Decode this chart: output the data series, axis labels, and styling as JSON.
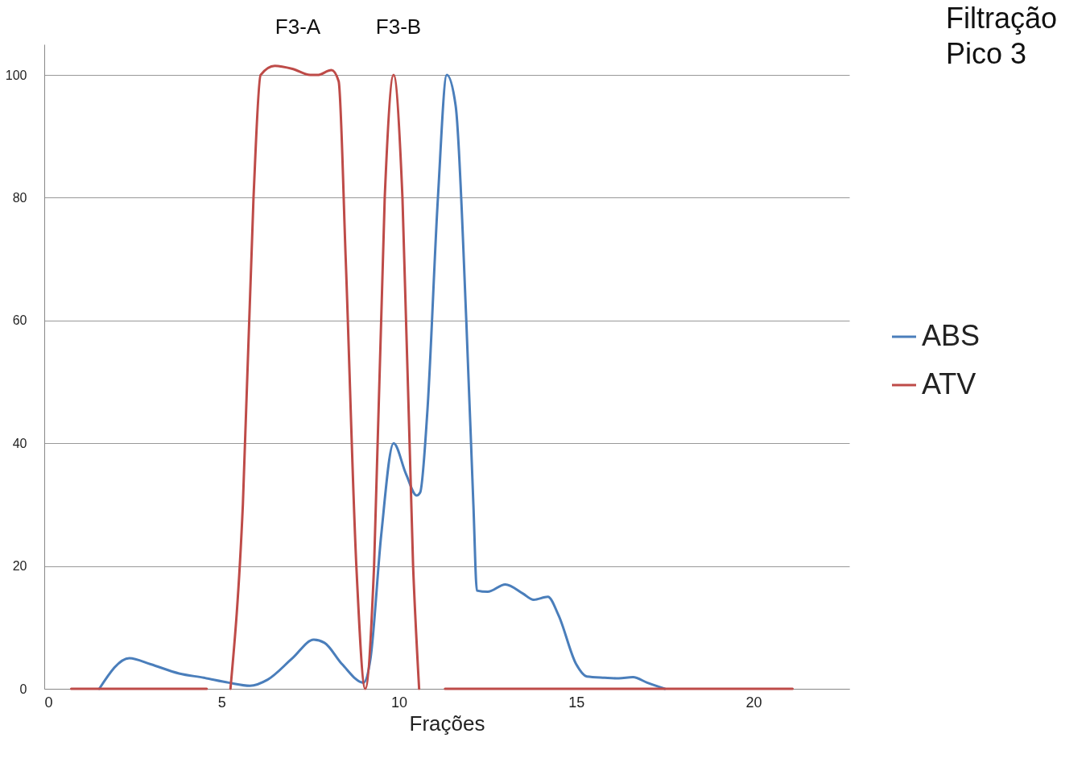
{
  "chart_data": {
    "type": "line",
    "title": "Filtração\nPico 3",
    "xlabel": "Frações",
    "xlim": [
      0,
      22.7
    ],
    "xticks": [
      0,
      5,
      10,
      15,
      20
    ],
    "ylim": [
      0,
      105
    ],
    "yticks": [
      0,
      20,
      40,
      60,
      80,
      100
    ],
    "grid": "y",
    "legend": "right",
    "marker": "none",
    "line_style": "solid",
    "annotations": [
      "F3-A",
      "F3-B"
    ],
    "series": [
      {
        "name": "ABS",
        "color": "#4a7ebb",
        "x": [
          1.55,
          2.4,
          3.0,
          3.8,
          4.5,
          5.2,
          5.8,
          6.3,
          7.0,
          7.6,
          7.9,
          8.4,
          9.0,
          9.2,
          9.5,
          9.85,
          10.2,
          10.5,
          10.6,
          10.8,
          11.1,
          11.35,
          11.6,
          11.9,
          12.1,
          12.2,
          12.5,
          13.0,
          13.5,
          13.8,
          14.2,
          14.5,
          15.0,
          15.3,
          15.8,
          16.2,
          16.6,
          17.0,
          17.5
        ],
        "values": [
          0,
          5,
          4,
          2.5,
          1.8,
          1,
          0.5,
          1.5,
          5,
          8,
          7.5,
          4,
          1,
          5,
          25,
          40,
          35,
          31.5,
          32,
          45,
          80,
          100,
          95,
          60,
          30,
          16,
          15.8,
          17,
          15.5,
          14.5,
          15,
          12,
          4,
          2,
          1.8,
          1.7,
          1.9,
          1,
          0
        ]
      },
      {
        "name": "ATV",
        "color": "#be4b48",
        "x": [
          0.76,
          4.58,
          4.9,
          5.25,
          5.6,
          5.9,
          6.1,
          6.5,
          7.0,
          7.5,
          7.7,
          8.1,
          8.3,
          8.5,
          8.8,
          9.05,
          9.3,
          9.6,
          9.85,
          10.1,
          10.4,
          10.57,
          10.9,
          11.3,
          21.1
        ],
        "values": [
          0,
          0,
          null,
          0,
          30,
          80,
          100,
          101.5,
          101,
          100,
          100,
          100.8,
          99,
          70,
          20,
          0,
          20,
          80,
          100,
          80,
          20,
          0,
          null,
          0,
          0
        ]
      }
    ]
  }
}
